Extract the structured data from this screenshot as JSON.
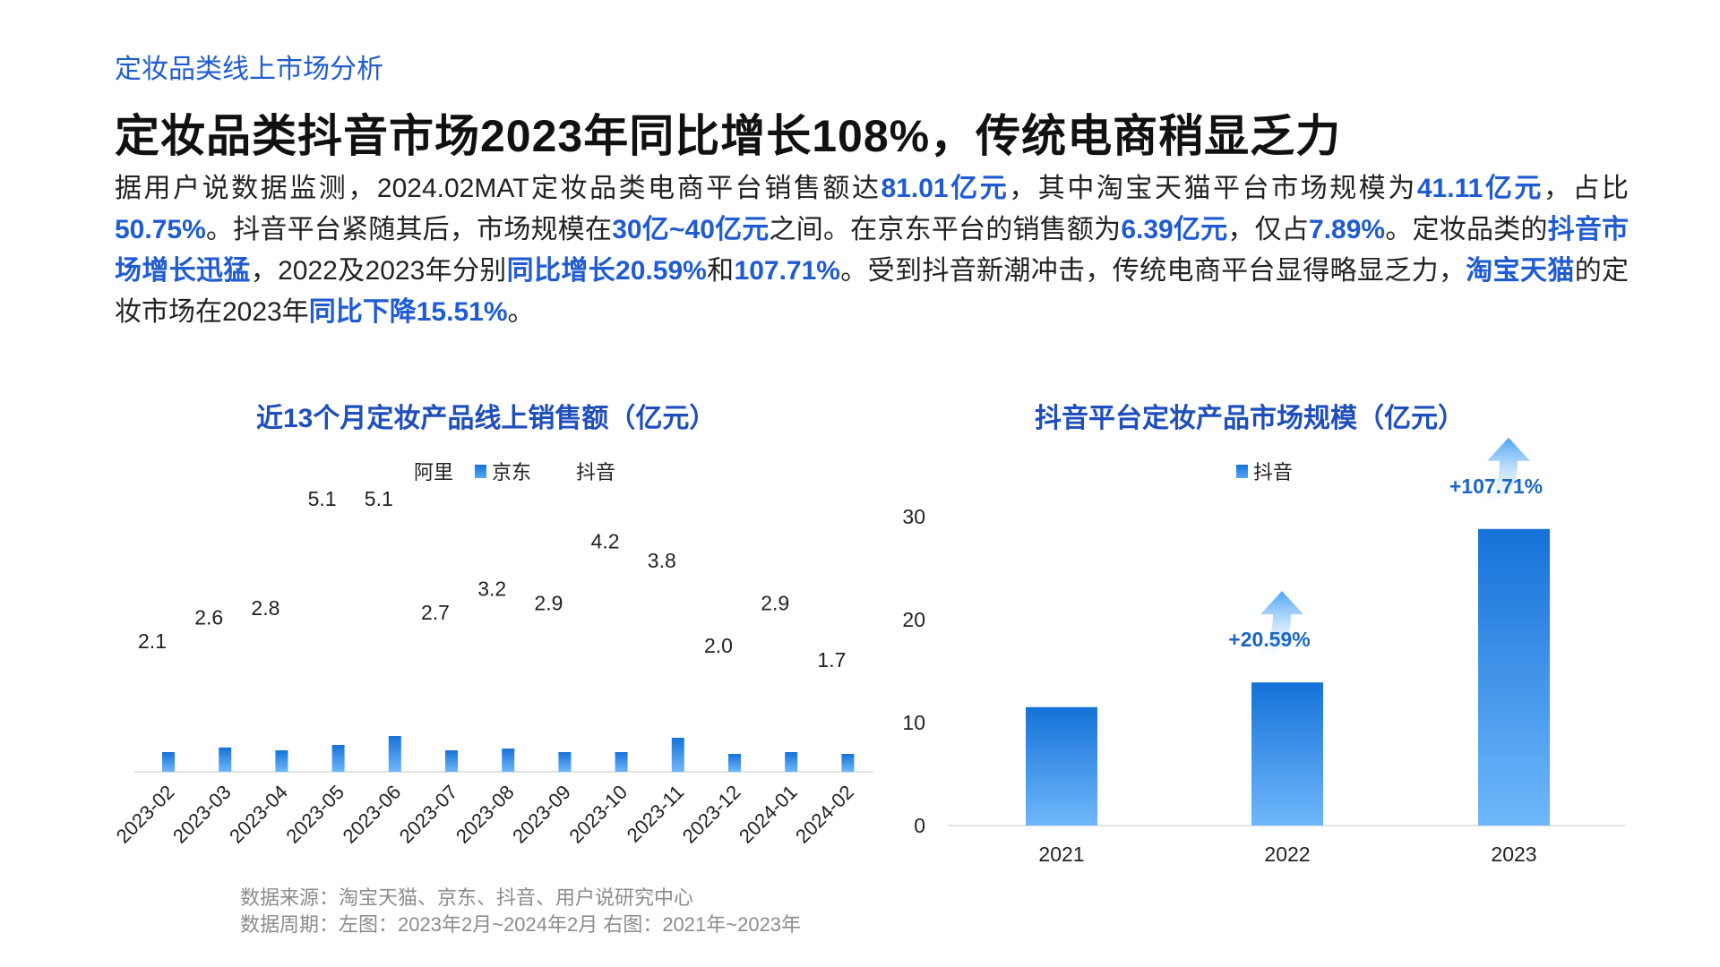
{
  "header": {
    "section_label": "定妆品类线上市场分析",
    "title": "定妆品类抖音市场2023年同比增长108%，传统电商稍显乏力"
  },
  "summary": {
    "p01": "据用户说数据监测，2024.02MAT定妆品类电商平台销售额达",
    "h01": "81.01亿元",
    "p02": "，其中淘宝天猫平台市场规模为",
    "h02": "41.11亿元",
    "p03": "，占比",
    "h03": "50.75%",
    "p04": "。抖音平台紧随其后，市场规模在",
    "h04": "30亿~40亿元",
    "p05": "之间。在京东平台的销售额为",
    "h05": "6.39亿元",
    "p06": "，仅占",
    "h06": "7.89%",
    "p07": "。定妆品类的",
    "h07": "抖音市场增长迅猛",
    "p08": "，2022及2023年分别",
    "h08": "同比增长20.59%",
    "p09": "和",
    "h09": "107.71%",
    "p10": "。受到抖音新潮冲击，传统电商平台显得略显乏力，",
    "h10": "淘宝天猫",
    "p11": "的定妆市场在2023年",
    "h11": "同比下降15.51%",
    "p12": "。"
  },
  "source": {
    "line1": "数据来源：淘宝天猫、京东、抖音、用户说研究中心",
    "line2": "数据周期：左图：2023年2月~2024年2月  右图：2021年~2023年"
  },
  "colors": {
    "accent": "#1f5bd1",
    "bar_top": "#1572d8",
    "bar_bottom": "#6fb7fb"
  },
  "chart_data": [
    {
      "type": "bar",
      "title": "近13个月定妆产品线上销售额（亿元）",
      "legend": [
        "阿里",
        "京东",
        "抖音"
      ],
      "legend_position": "top",
      "categories": [
        "2023-02",
        "2023-03",
        "2023-04",
        "2023-05",
        "2023-06",
        "2023-07",
        "2023-08",
        "2023-09",
        "2023-10",
        "2023-11",
        "2023-12",
        "2024-01",
        "2024-02"
      ],
      "series": [
        {
          "name": "京东",
          "values": [
            0.55,
            0.68,
            0.6,
            0.75,
            1.0,
            0.6,
            0.65,
            0.55,
            0.55,
            0.95,
            0.5,
            0.55,
            0.5
          ]
        }
      ],
      "labels": [
        "2.1",
        "2.6",
        "2.8",
        "5.1",
        "5.1",
        "2.7",
        "3.2",
        "2.9",
        "4.2",
        "3.8",
        "2.0",
        "2.9",
        "1.7"
      ],
      "label_values": [
        2.1,
        2.6,
        2.8,
        5.1,
        5.1,
        2.7,
        3.2,
        2.9,
        4.2,
        3.8,
        2.0,
        2.9,
        1.7
      ],
      "grid": false
    },
    {
      "type": "bar",
      "title": "抖音平台定妆产品市场规模（亿元）",
      "legend": [
        "抖音"
      ],
      "legend_position": "top",
      "categories": [
        "2021",
        "2022",
        "2023"
      ],
      "series": [
        {
          "name": "抖音",
          "values": [
            11.5,
            13.9,
            28.8
          ]
        }
      ],
      "yticks": [
        "0",
        "10",
        "20",
        "30"
      ],
      "ylim": [
        0,
        30
      ],
      "annotations": [
        {
          "category": "2022",
          "text": "+20.59%"
        },
        {
          "category": "2023",
          "text": "+107.71%"
        }
      ],
      "grid": false
    }
  ]
}
